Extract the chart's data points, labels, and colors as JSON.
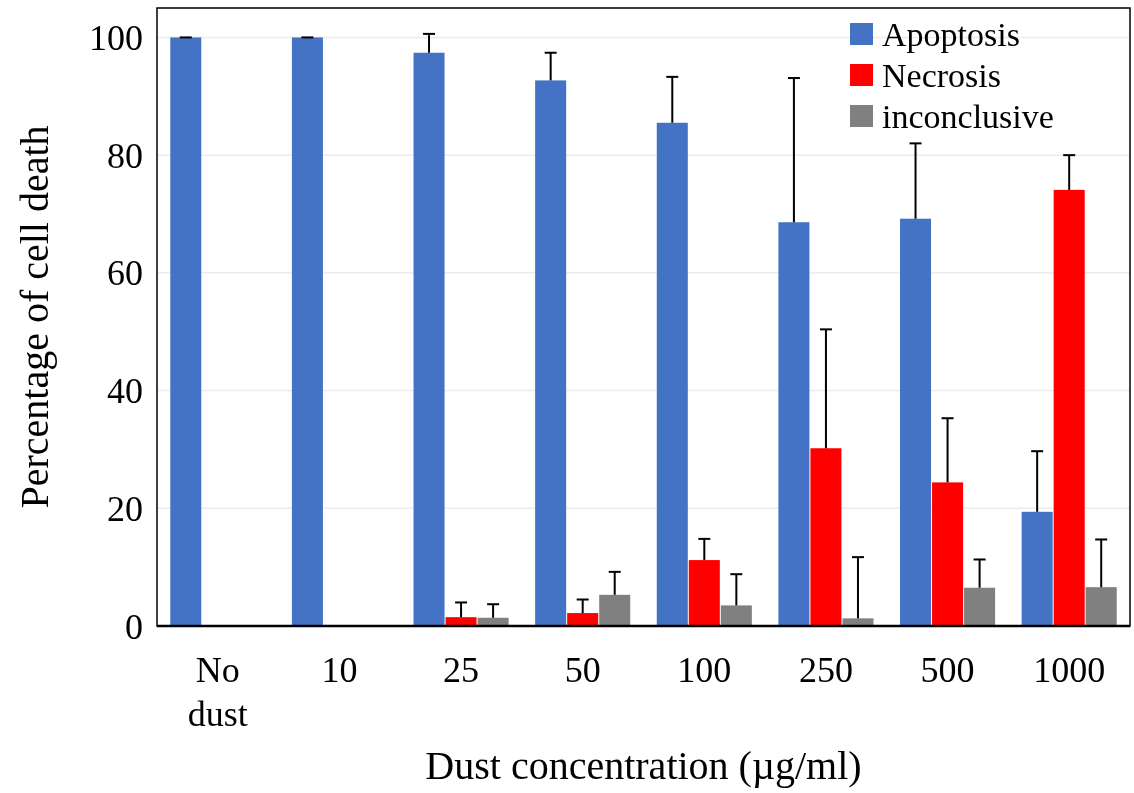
{
  "chart_data": {
    "type": "bar",
    "xlabel": "Dust concentration (µg/ml)",
    "ylabel": "Percentage of cell death",
    "categories": [
      "No dust",
      "10",
      "25",
      "50",
      "100",
      "250",
      "500",
      "1000"
    ],
    "series": [
      {
        "name": "Apoptosis",
        "color": "#4472c4",
        "values": [
          100,
          100,
          97.4,
          92.7,
          85.5,
          68.6,
          69.2,
          19.4
        ],
        "errors": [
          [
            100,
            100
          ],
          [
            100,
            100
          ],
          [
            97.4,
            100.6
          ],
          [
            92.7,
            97.4
          ],
          [
            85.5,
            93.3
          ],
          [
            68.6,
            93.1
          ],
          [
            69.2,
            82.0
          ],
          [
            19.4,
            29.7
          ]
        ]
      },
      {
        "name": "Necrosis",
        "color": "#ff0000",
        "values": [
          0,
          0,
          1.5,
          2.2,
          11.2,
          30.2,
          24.4,
          74.1
        ],
        "errors": [
          null,
          null,
          [
            1.5,
            4.0
          ],
          [
            2.2,
            4.5
          ],
          [
            11.2,
            14.8
          ],
          [
            30.2,
            50.4
          ],
          [
            24.4,
            35.3
          ],
          [
            74.1,
            80.0
          ]
        ]
      },
      {
        "name": "inconclusive",
        "color": "#808080",
        "values": [
          0,
          0,
          1.4,
          5.3,
          3.5,
          1.3,
          6.5,
          6.6
        ],
        "errors": [
          null,
          null,
          [
            1.4,
            3.7
          ],
          [
            5.3,
            9.2
          ],
          [
            3.5,
            8.8
          ],
          [
            1.3,
            11.7
          ],
          [
            6.5,
            11.3
          ],
          [
            6.6,
            14.7
          ]
        ]
      }
    ],
    "ylim": [
      0,
      105
    ],
    "yticks": [
      0,
      20,
      40,
      60,
      80,
      100
    ],
    "grid": "y",
    "legend": "top right"
  }
}
